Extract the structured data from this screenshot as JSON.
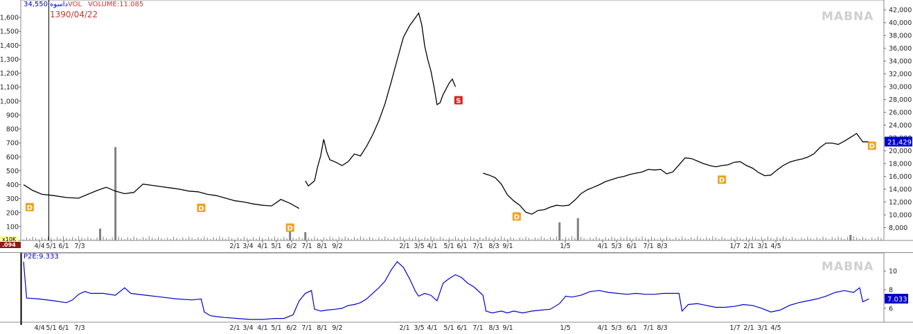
{
  "header": {
    "price": "34,550",
    "symbol": "داسوه",
    "vol_label": "VOL",
    "volume_text": "VOLUME:11.085",
    "date": "1390/04/22",
    "watermark": "MABNA",
    "indicator_label": "P2E:9.333",
    "vol_scale_tag": "x10K",
    "vol_last_tag": ".094"
  },
  "colors": {
    "price_line": "#000000",
    "indicator_line": "#0000cc",
    "last_price_tag": "#0000cc",
    "dividend_marker": "#f0a020",
    "sell_marker": "#dd2222",
    "volume_bar": "#808080",
    "date_label": "#cc3333",
    "vol_tag_bg": "#ffff99",
    "vol_last_bg": "#8b1a1a"
  },
  "chart_data": [
    {
      "type": "line",
      "title": "",
      "y_axis_right": {
        "min": 6000,
        "max": 43000,
        "ticks": [
          8000,
          10000,
          12000,
          14000,
          16000,
          18000,
          20000,
          22000,
          24000,
          26000,
          28000,
          30000,
          32000,
          34000,
          36000,
          38000,
          40000,
          42000
        ]
      },
      "y_axis_left": {
        "label": "volume",
        "min": 0,
        "max": 1700,
        "ticks": [
          100,
          200,
          300,
          400,
          500,
          600,
          700,
          800,
          900,
          1000,
          1100,
          1200,
          1300,
          1400,
          1500,
          1600
        ]
      },
      "x_tick_labels": [
        "4/4",
        "5/1",
        "6/1",
        "7/3",
        "2/1",
        "3/4",
        "4/1",
        "5/1",
        "6/2",
        "7/1",
        "8/1",
        "9/2",
        "2/1",
        "3/5",
        "4/1",
        "5/1",
        "6/1",
        "7/1",
        "8/3",
        "9/1",
        "1/5",
        "4/1",
        "5/3",
        "6/1",
        "7/1",
        "8/3",
        "1/7",
        "2/1",
        "3/1",
        "4/5"
      ],
      "last_value": "21,429",
      "series": [
        {
          "points": [
            [
              0,
              14700
            ],
            [
              3,
              13800
            ],
            [
              6,
              13200
            ],
            [
              10,
              13000
            ],
            [
              14,
              12700
            ],
            [
              18,
              12600
            ],
            [
              21,
              13200
            ],
            [
              24,
              13800
            ],
            [
              27,
              14300
            ],
            [
              30,
              13700
            ],
            [
              33,
              13300
            ],
            [
              36,
              13500
            ],
            [
              39,
              14800
            ],
            [
              42,
              14600
            ],
            [
              45,
              14400
            ],
            [
              48,
              14200
            ],
            [
              51,
              14000
            ],
            [
              54,
              13700
            ],
            [
              57,
              13600
            ],
            [
              60,
              13200
            ],
            [
              63,
              13000
            ],
            [
              66,
              12600
            ],
            [
              69,
              12200
            ],
            [
              72,
              12000
            ],
            [
              75,
              11700
            ],
            [
              78,
              11500
            ],
            [
              81,
              11400
            ],
            [
              84,
              12400
            ],
            [
              87,
              11800
            ],
            [
              90,
              11000
            ]
          ]
        },
        {
          "points": [
            [
              92,
              15300
            ],
            [
              93,
              14500
            ],
            [
              95,
              15300
            ],
            [
              96,
              17500
            ],
            [
              97,
              19200
            ],
            [
              98,
              21800
            ],
            [
              99,
              19800
            ],
            [
              100,
              18600
            ],
            [
              102,
              18200
            ],
            [
              104,
              17700
            ],
            [
              106,
              18300
            ],
            [
              108,
              19500
            ],
            [
              110,
              19200
            ],
            [
              112,
              20700
            ],
            [
              114,
              22500
            ],
            [
              116,
              24700
            ],
            [
              118,
              27300
            ],
            [
              120,
              30700
            ],
            [
              122,
              34200
            ],
            [
              124,
              37700
            ],
            [
              126,
              39500
            ],
            [
              128,
              40800
            ],
            [
              129,
              41500
            ],
            [
              130,
              39700
            ],
            [
              131,
              36300
            ],
            [
              132,
              34200
            ],
            [
              133,
              32500
            ],
            [
              134,
              30000
            ],
            [
              135,
              27200
            ],
            [
              136,
              27500
            ],
            [
              137,
              28800
            ],
            [
              139,
              30600
            ],
            [
              140,
              31200
            ],
            [
              141,
              30000
            ]
          ]
        },
        {
          "points": [
            [
              150,
              16500
            ],
            [
              152,
              16200
            ],
            [
              154,
              15800
            ],
            [
              156,
              14800
            ],
            [
              158,
              13100
            ],
            [
              160,
              12200
            ],
            [
              162,
              11500
            ],
            [
              164,
              10400
            ],
            [
              166,
              10100
            ],
            [
              168,
              10700
            ],
            [
              170,
              10800
            ],
            [
              172,
              11200
            ],
            [
              174,
              11500
            ],
            [
              176,
              11400
            ],
            [
              178,
              11500
            ],
            [
              180,
              12300
            ],
            [
              182,
              13300
            ],
            [
              184,
              13900
            ],
            [
              186,
              14300
            ],
            [
              188,
              14700
            ],
            [
              190,
              15200
            ],
            [
              192,
              15500
            ],
            [
              194,
              15800
            ],
            [
              196,
              16000
            ],
            [
              198,
              16300
            ],
            [
              200,
              16500
            ],
            [
              202,
              16700
            ],
            [
              204,
              17100
            ],
            [
              206,
              17000
            ],
            [
              208,
              17100
            ],
            [
              210,
              16400
            ],
            [
              212,
              16700
            ],
            [
              214,
              17800
            ],
            [
              216,
              18900
            ],
            [
              218,
              18800
            ],
            [
              220,
              18400
            ],
            [
              222,
              18000
            ],
            [
              224,
              17700
            ],
            [
              226,
              17500
            ],
            [
              228,
              17700
            ],
            [
              230,
              17800
            ],
            [
              232,
              18200
            ],
            [
              234,
              18300
            ],
            [
              236,
              17700
            ],
            [
              238,
              17300
            ],
            [
              240,
              16600
            ],
            [
              242,
              16100
            ],
            [
              244,
              16200
            ],
            [
              246,
              17000
            ],
            [
              248,
              17700
            ],
            [
              250,
              18200
            ],
            [
              252,
              18500
            ],
            [
              254,
              18700
            ],
            [
              256,
              19000
            ],
            [
              258,
              19500
            ],
            [
              260,
              20500
            ],
            [
              262,
              21200
            ],
            [
              264,
              21200
            ],
            [
              266,
              21000
            ],
            [
              268,
              21500
            ],
            [
              270,
              22100
            ],
            [
              272,
              22700
            ],
            [
              274,
              21400
            ],
            [
              276,
              21400
            ]
          ]
        }
      ],
      "markers": [
        {
          "type": "D",
          "x": 2,
          "y": 11200
        },
        {
          "type": "D",
          "x": 58,
          "y": 11100
        },
        {
          "type": "D",
          "x": 87,
          "y": 8000
        },
        {
          "type": "S",
          "x": 142,
          "y": 27900
        },
        {
          "type": "D",
          "x": 161,
          "y": 9750
        },
        {
          "type": "D",
          "x": 228,
          "y": 15500
        },
        {
          "type": "D",
          "x": 277,
          "y": 20800
        }
      ],
      "volume_spikes": [
        [
          30,
          670
        ],
        [
          25,
          85
        ],
        [
          87,
          110
        ],
        [
          92,
          60
        ],
        [
          175,
          130
        ],
        [
          181,
          160
        ],
        [
          270,
          40
        ]
      ]
    },
    {
      "type": "line",
      "title": "P2E:9.333",
      "y_axis_right": {
        "min": 4.5,
        "max": 11.5,
        "ticks": [
          6,
          8,
          10
        ]
      },
      "last_value": "7.033",
      "series": [
        {
          "name": "P2E",
          "points": [
            [
              0,
              11
            ],
            [
              1,
              7.1
            ],
            [
              5,
              7
            ],
            [
              10,
              6.8
            ],
            [
              14,
              6.6
            ],
            [
              16,
              6.9
            ],
            [
              18,
              7.5
            ],
            [
              20,
              7.8
            ],
            [
              22,
              7.6
            ],
            [
              26,
              7.6
            ],
            [
              30,
              7.4
            ],
            [
              33,
              8.2
            ],
            [
              35,
              7.6
            ],
            [
              40,
              7.4
            ],
            [
              45,
              7.2
            ],
            [
              50,
              7
            ],
            [
              55,
              6.9
            ],
            [
              58,
              7
            ],
            [
              59,
              5.6
            ],
            [
              61,
              5.2
            ],
            [
              63,
              5.1
            ],
            [
              66,
              5
            ],
            [
              70,
              4.9
            ],
            [
              74,
              4.8
            ],
            [
              78,
              4.8
            ],
            [
              82,
              4.9
            ],
            [
              85,
              4.9
            ],
            [
              88,
              5.3
            ],
            [
              90,
              6.8
            ],
            [
              92,
              7.6
            ],
            [
              94,
              7.9
            ],
            [
              95,
              5.9
            ],
            [
              97,
              5.7
            ],
            [
              99,
              5.8
            ],
            [
              102,
              5.9
            ],
            [
              104,
              6
            ],
            [
              106,
              6.3
            ],
            [
              108,
              6.4
            ],
            [
              110,
              6.6
            ],
            [
              112,
              7
            ],
            [
              114,
              7.6
            ],
            [
              116,
              8.2
            ],
            [
              118,
              8.9
            ],
            [
              120,
              10.1
            ],
            [
              122,
              11
            ],
            [
              124,
              10.4
            ],
            [
              126,
              9.2
            ],
            [
              128,
              7.8
            ],
            [
              129,
              7.3
            ],
            [
              131,
              7.6
            ],
            [
              133,
              7.4
            ],
            [
              135,
              6.8
            ],
            [
              137,
              8.7
            ],
            [
              139,
              9.2
            ],
            [
              141,
              9.6
            ],
            [
              143,
              9.3
            ],
            [
              145,
              8.7
            ],
            [
              147,
              8.3
            ],
            [
              149,
              7.7
            ],
            [
              150,
              7.4
            ],
            [
              151,
              5.7
            ],
            [
              153,
              5.5
            ],
            [
              156,
              5.7
            ],
            [
              158,
              5.5
            ],
            [
              160,
              5.7
            ],
            [
              163,
              5.5
            ],
            [
              166,
              5.7
            ],
            [
              169,
              5.8
            ],
            [
              172,
              5.9
            ],
            [
              175,
              6.5
            ],
            [
              177,
              7.3
            ],
            [
              179,
              7.2
            ],
            [
              182,
              7.4
            ],
            [
              185,
              7.8
            ],
            [
              188,
              7.9
            ],
            [
              191,
              7.7
            ],
            [
              194,
              7.6
            ],
            [
              197,
              7.5
            ],
            [
              200,
              7.6
            ],
            [
              203,
              7.5
            ],
            [
              206,
              7.5
            ],
            [
              209,
              7.6
            ],
            [
              212,
              7.6
            ],
            [
              214,
              7.6
            ],
            [
              215,
              5.7
            ],
            [
              217,
              6.4
            ],
            [
              220,
              6.5
            ],
            [
              223,
              6.3
            ],
            [
              226,
              6.1
            ],
            [
              229,
              6.1
            ],
            [
              232,
              6.2
            ],
            [
              235,
              6.4
            ],
            [
              238,
              6.3
            ],
            [
              241,
              6
            ],
            [
              244,
              5.6
            ],
            [
              247,
              5.8
            ],
            [
              250,
              6.3
            ],
            [
              253,
              6.6
            ],
            [
              256,
              6.8
            ],
            [
              259,
              7
            ],
            [
              262,
              7.3
            ],
            [
              265,
              7.7
            ],
            [
              268,
              7.9
            ],
            [
              271,
              7.7
            ],
            [
              273,
              8.2
            ],
            [
              274,
              6.7
            ],
            [
              276,
              7
            ]
          ]
        }
      ]
    }
  ]
}
